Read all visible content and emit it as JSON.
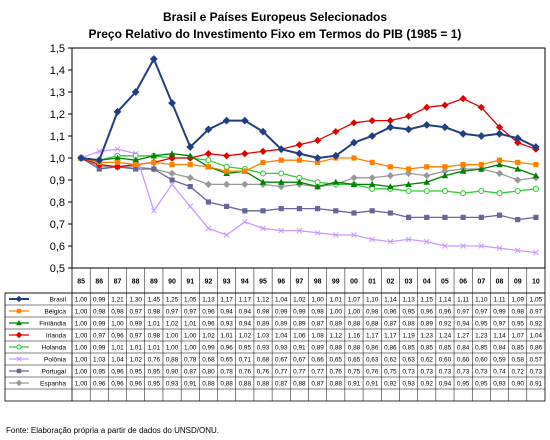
{
  "chart_data": {
    "type": "line",
    "title": "Brasil e Países Europeus Selecionados",
    "subtitle": "Preço Relativo do Investimento Fixo em Termos do PIB (1985 = 1)",
    "source": "Fonte: Elaboração própria a partir de dados do UNSD/ONU.",
    "x": [
      "85",
      "86",
      "87",
      "88",
      "89",
      "90",
      "91",
      "92",
      "93",
      "94",
      "95",
      "96",
      "97",
      "98",
      "99",
      "00",
      "01",
      "02",
      "03",
      "04",
      "05",
      "06",
      "07",
      "08",
      "09",
      "10"
    ],
    "ylim": [
      0.5,
      1.5
    ],
    "yticks": [
      "0,5",
      "0,6",
      "0,7",
      "0,8",
      "0,9",
      "1,0",
      "1,1",
      "1,2",
      "1,3",
      "1,4",
      "1,5"
    ],
    "grid": false,
    "legend": "table-below",
    "series": [
      {
        "name": "Brasil",
        "color": "#1F3F7F",
        "marker": "diamond",
        "labels": [
          "1,00",
          "0,99",
          "1,21",
          "1,30",
          "1,45",
          "1,25",
          "1,05",
          "1,13",
          "1,17",
          "1,17",
          "1,12",
          "1,04",
          "1,02",
          "1,00",
          "1,01",
          "1,07",
          "1,10",
          "1,14",
          "1,13",
          "1,15",
          "1,14",
          "1,11",
          "1,10",
          "1,11",
          "1,09",
          "1,05"
        ],
        "values": [
          1.0,
          0.99,
          1.21,
          1.3,
          1.45,
          1.25,
          1.05,
          1.13,
          1.17,
          1.17,
          1.12,
          1.04,
          1.02,
          1.0,
          1.01,
          1.07,
          1.1,
          1.14,
          1.13,
          1.15,
          1.14,
          1.11,
          1.1,
          1.11,
          1.09,
          1.05
        ]
      },
      {
        "name": "Bélgica",
        "color": "#FF8000",
        "marker": "square",
        "labels": [
          "1,00",
          "0,98",
          "0,98",
          "0,97",
          "0,98",
          "0,97",
          "0,97",
          "0,96",
          "0,94",
          "0,94",
          "0,98",
          "0,99",
          "0,99",
          "0,98",
          "1,00",
          "1,00",
          "0,98",
          "0,96",
          "0,95",
          "0,96",
          "0,96",
          "0,97",
          "0,97",
          "0,99",
          "0,98",
          "0,97"
        ],
        "values": [
          1.0,
          0.98,
          0.98,
          0.97,
          0.98,
          0.97,
          0.97,
          0.96,
          0.94,
          0.94,
          0.98,
          0.99,
          0.99,
          0.98,
          1.0,
          1.0,
          0.98,
          0.96,
          0.95,
          0.96,
          0.96,
          0.97,
          0.97,
          0.99,
          0.98,
          0.97
        ]
      },
      {
        "name": "Finlândia",
        "color": "#008000",
        "marker": "triangle",
        "labels": [
          "1,00",
          "0,99",
          "1,00",
          "0,99",
          "1,01",
          "1,02",
          "1,01",
          "0,96",
          "0,93",
          "0,94",
          "0,89",
          "0,89",
          "0,89",
          "0,87",
          "0,89",
          "0,88",
          "0,88",
          "0,87",
          "0,88",
          "0,89",
          "0,92",
          "0,94",
          "0,95",
          "0,97",
          "0,95",
          "0,92"
        ],
        "values": [
          1.0,
          0.99,
          1.0,
          0.99,
          1.01,
          1.02,
          1.01,
          0.96,
          0.93,
          0.94,
          0.89,
          0.89,
          0.89,
          0.87,
          0.89,
          0.88,
          0.88,
          0.87,
          0.88,
          0.89,
          0.92,
          0.94,
          0.95,
          0.97,
          0.95,
          0.92
        ]
      },
      {
        "name": "Irlanda",
        "color": "#E00000",
        "marker": "diamond",
        "labels": [
          "1,00",
          "0,97",
          "0,96",
          "0,97",
          "0,98",
          "1,00",
          "1,00",
          "1,02",
          "1,01",
          "1,02",
          "1,03",
          "1,04",
          "1,06",
          "1,08",
          "1,12",
          "1,16",
          "1,17",
          "1,17",
          "1,19",
          "1,23",
          "1,24",
          "1,27",
          "1,23",
          "1,14",
          "1,07",
          "1,04"
        ],
        "values": [
          1.0,
          0.97,
          0.96,
          0.97,
          0.98,
          1.0,
          1.0,
          1.02,
          1.01,
          1.02,
          1.03,
          1.04,
          1.06,
          1.08,
          1.12,
          1.16,
          1.17,
          1.17,
          1.19,
          1.23,
          1.24,
          1.27,
          1.23,
          1.14,
          1.07,
          1.04
        ]
      },
      {
        "name": "Holanda",
        "color": "#33CC33",
        "marker": "circle",
        "labels": [
          "1,00",
          "0,99",
          "1,01",
          "1,01",
          "1,01",
          "1,00",
          "1,00",
          "0,99",
          "0,96",
          "0,95",
          "0,93",
          "0,93",
          "0,91",
          "0,89",
          "0,88",
          "0,88",
          "0,86",
          "0,86",
          "0,85",
          "0,85",
          "0,85",
          "0,84",
          "0,85",
          "0,84",
          "0,85",
          "0,86"
        ],
        "values": [
          1.0,
          0.99,
          1.01,
          1.01,
          1.01,
          1.0,
          1.0,
          0.99,
          0.96,
          0.95,
          0.93,
          0.93,
          0.91,
          0.89,
          0.88,
          0.88,
          0.86,
          0.86,
          0.85,
          0.85,
          0.85,
          0.84,
          0.85,
          0.84,
          0.85,
          0.86
        ]
      },
      {
        "name": "Polônia",
        "color": "#CC99FF",
        "marker": "x",
        "labels": [
          "1,00",
          "1,03",
          "1,04",
          "1,02",
          "0,76",
          "0,88",
          "0,78",
          "0,68",
          "0,65",
          "0,71",
          "0,68",
          "0,67",
          "0,67",
          "0,66",
          "0,65",
          "0,65",
          "0,63",
          "0,62",
          "0,63",
          "0,62",
          "0,60",
          "0,60",
          "0,60",
          "0,59",
          "0,58",
          "0,57"
        ],
        "values": [
          1.0,
          1.03,
          1.04,
          1.02,
          0.76,
          0.88,
          0.78,
          0.68,
          0.65,
          0.71,
          0.68,
          0.67,
          0.67,
          0.66,
          0.65,
          0.65,
          0.63,
          0.62,
          0.63,
          0.62,
          0.6,
          0.6,
          0.6,
          0.59,
          0.58,
          0.57
        ]
      },
      {
        "name": "Portugal",
        "color": "#666699",
        "marker": "square",
        "labels": [
          "1,00",
          "0,95",
          "0,96",
          "0,95",
          "0,95",
          "0,90",
          "0,87",
          "0,80",
          "0,78",
          "0,76",
          "0,76",
          "0,77",
          "0,77",
          "0,77",
          "0,76",
          "0,75",
          "0,76",
          "0,75",
          "0,73",
          "0,73",
          "0,73",
          "0,73",
          "0,73",
          "0,74",
          "0,72",
          "0,73"
        ],
        "values": [
          1.0,
          0.95,
          0.96,
          0.95,
          0.95,
          0.9,
          0.87,
          0.8,
          0.78,
          0.76,
          0.76,
          0.77,
          0.77,
          0.77,
          0.76,
          0.75,
          0.76,
          0.75,
          0.73,
          0.73,
          0.73,
          0.73,
          0.73,
          0.74,
          0.72,
          0.73
        ]
      },
      {
        "name": "Espanha",
        "color": "#999999",
        "marker": "diamond",
        "labels": [
          "1,00",
          "0,96",
          "0,96",
          "0,96",
          "0,95",
          "0,93",
          "0,91",
          "0,88",
          "0,88",
          "0,88",
          "0,88",
          "0,87",
          "0,88",
          "0,87",
          "0,88",
          "0,91",
          "0,91",
          "0,92",
          "0,93",
          "0,92",
          "0,94",
          "0,95",
          "0,95",
          "0,93",
          "0,90",
          "0,91"
        ],
        "values": [
          1.0,
          0.96,
          0.96,
          0.96,
          0.95,
          0.93,
          0.91,
          0.88,
          0.88,
          0.88,
          0.88,
          0.87,
          0.88,
          0.87,
          0.88,
          0.91,
          0.91,
          0.92,
          0.93,
          0.92,
          0.94,
          0.95,
          0.95,
          0.93,
          0.9,
          0.91
        ]
      }
    ]
  }
}
